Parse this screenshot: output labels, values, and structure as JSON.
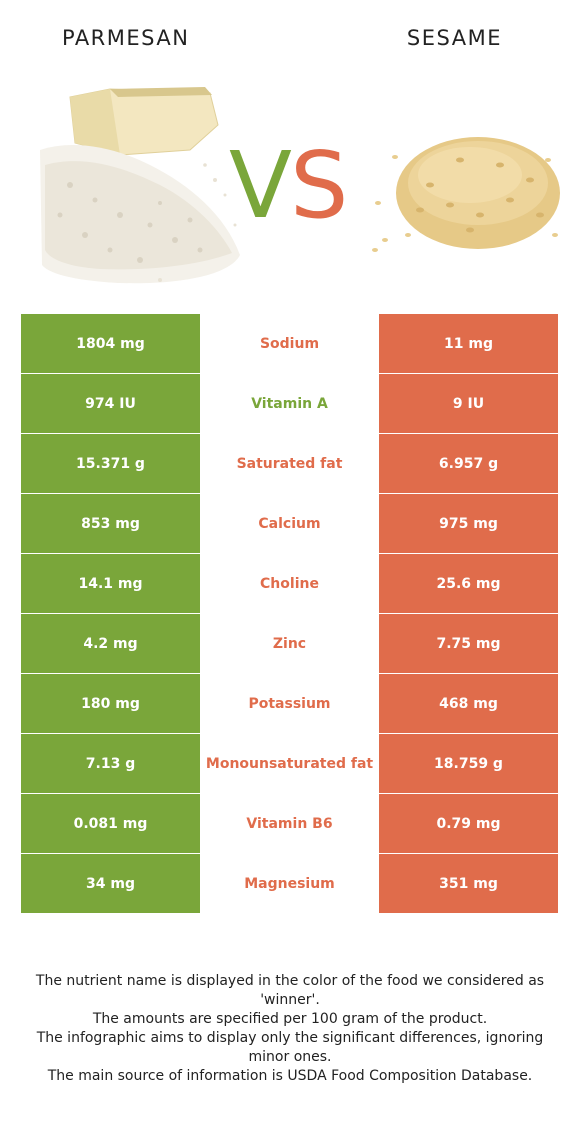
{
  "header": {
    "left_food": "PARMESAN",
    "right_food": "SESAME",
    "vs_v": "V",
    "vs_s": "S"
  },
  "colors": {
    "left_accent": "#7aa63a",
    "right_accent": "#e06c4b"
  },
  "images": {
    "left": "parmesan-cheese-image",
    "right": "sesame-seeds-image"
  },
  "rows": [
    {
      "left": "1804 mg",
      "name": "Sodium",
      "right": "11 mg",
      "winner": "right"
    },
    {
      "left": "974 IU",
      "name": "Vitamin A",
      "right": "9 IU",
      "winner": "left"
    },
    {
      "left": "15.371 g",
      "name": "Saturated fat",
      "right": "6.957 g",
      "winner": "right"
    },
    {
      "left": "853 mg",
      "name": "Calcium",
      "right": "975 mg",
      "winner": "right"
    },
    {
      "left": "14.1 mg",
      "name": "Choline",
      "right": "25.6 mg",
      "winner": "right"
    },
    {
      "left": "4.2 mg",
      "name": "Zinc",
      "right": "7.75 mg",
      "winner": "right"
    },
    {
      "left": "180 mg",
      "name": "Potassium",
      "right": "468 mg",
      "winner": "right"
    },
    {
      "left": "7.13 g",
      "name": "Monounsaturated fat",
      "right": "18.759 g",
      "winner": "right"
    },
    {
      "left": "0.081 mg",
      "name": "Vitamin B6",
      "right": "0.79 mg",
      "winner": "right"
    },
    {
      "left": "34 mg",
      "name": "Magnesium",
      "right": "351 mg",
      "winner": "right"
    }
  ],
  "footnotes": [
    "The nutrient name is displayed in the color of the food we considered as 'winner'.",
    "The amounts are specified per 100 gram of the product.",
    "The infographic aims to display only the significant differences, ignoring minor ones.",
    "The main source of information is USDA Food Composition Database."
  ]
}
